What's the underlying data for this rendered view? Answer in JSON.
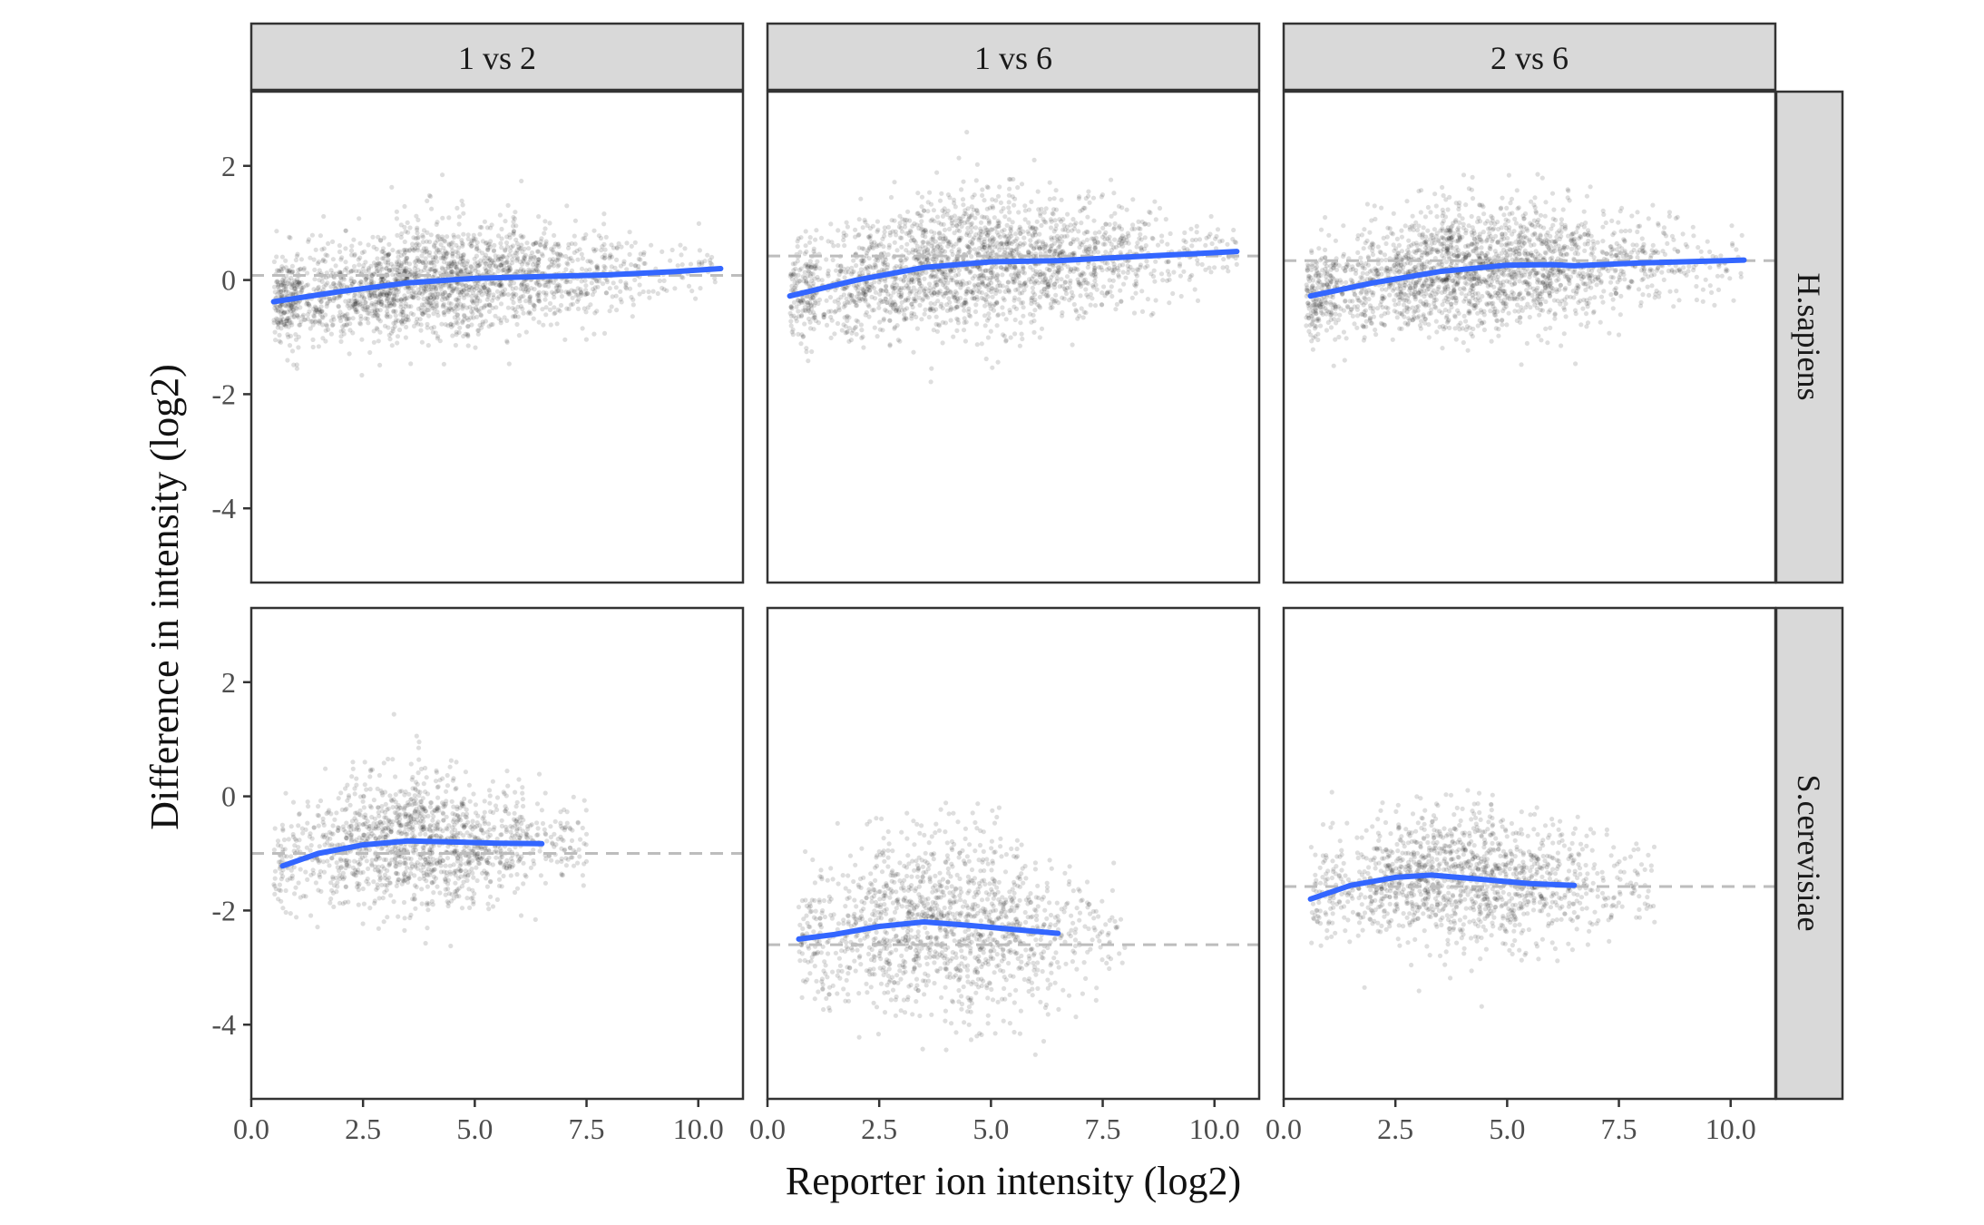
{
  "chart_data": {
    "type": "scatter",
    "xlabel": "Reporter ion intensity (log2)",
    "ylabel": "Difference in intensity (log2)",
    "xlim": [
      0,
      11
    ],
    "ylim": [
      -5.3,
      3.3
    ],
    "xticks": [
      0,
      2.5,
      5,
      7.5,
      10
    ],
    "xtick_labels": [
      "0.0",
      "2.5",
      "5.0",
      "7.5",
      "10.0"
    ],
    "yticks": [
      2,
      0,
      -2,
      -4
    ],
    "ytick_labels": [
      "2",
      "0",
      "-2",
      "-4"
    ],
    "grid": false,
    "legend": "none",
    "colors": {
      "points": "#000000",
      "smooth": "#3366ff",
      "reference": "#bdbdbd",
      "strip_bg": "#d9d9d9",
      "panel_border": "#333333"
    },
    "col_facets": [
      "1 vs 2",
      "1 vs 6",
      "2 vs 6"
    ],
    "row_facets": [
      "H.sapiens",
      "S.cerevisiae"
    ],
    "panels": [
      {
        "row": "H.sapiens",
        "col": "1 vs 2",
        "reference_y": 0.08,
        "x_range": [
          0.5,
          10.5
        ],
        "scatter_center": 4.2,
        "spread": 0.45,
        "smooth": {
          "x": [
            0.5,
            2.0,
            3.5,
            5.0,
            6.5,
            8.0,
            9.5,
            10.5
          ],
          "y": [
            -0.38,
            -0.2,
            -0.05,
            0.03,
            0.06,
            0.09,
            0.15,
            0.2
          ]
        }
      },
      {
        "row": "H.sapiens",
        "col": "1 vs 6",
        "reference_y": 0.42,
        "x_range": [
          0.5,
          10.5
        ],
        "scatter_center": 4.5,
        "spread": 0.55,
        "smooth": {
          "x": [
            0.5,
            2.0,
            3.5,
            5.0,
            6.5,
            8.0,
            9.5,
            10.5
          ],
          "y": [
            -0.28,
            0.0,
            0.22,
            0.32,
            0.34,
            0.4,
            0.46,
            0.5
          ]
        }
      },
      {
        "row": "H.sapiens",
        "col": "2 vs 6",
        "reference_y": 0.34,
        "x_range": [
          0.5,
          10.3
        ],
        "scatter_center": 4.3,
        "spread": 0.5,
        "smooth": {
          "x": [
            0.6,
            2.0,
            3.5,
            5.0,
            6.0,
            6.5,
            8.0,
            9.5,
            10.3
          ],
          "y": [
            -0.28,
            -0.05,
            0.15,
            0.26,
            0.27,
            0.25,
            0.3,
            0.33,
            0.35
          ]
        }
      },
      {
        "row": "S.cerevisiae",
        "col": "1 vs 2",
        "reference_y": -1.0,
        "x_range": [
          0.5,
          7.5
        ],
        "scatter_center": 3.8,
        "spread": 0.55,
        "smooth": {
          "x": [
            0.7,
            1.5,
            2.5,
            3.5,
            4.5,
            5.5,
            6.5
          ],
          "y": [
            -1.22,
            -1.0,
            -0.85,
            -0.78,
            -0.8,
            -0.82,
            -0.83
          ]
        }
      },
      {
        "row": "S.cerevisiae",
        "col": "1 vs 6",
        "reference_y": -2.6,
        "x_range": [
          0.7,
          8.0
        ],
        "scatter_center": 4.0,
        "spread": 0.75,
        "smooth": {
          "x": [
            0.7,
            1.5,
            2.5,
            3.5,
            4.5,
            5.5,
            6.5
          ],
          "y": [
            -2.5,
            -2.42,
            -2.28,
            -2.2,
            -2.26,
            -2.33,
            -2.4
          ]
        }
      },
      {
        "row": "S.cerevisiae",
        "col": "2 vs 6",
        "reference_y": -1.58,
        "x_range": [
          0.6,
          8.3
        ],
        "scatter_center": 4.0,
        "spread": 0.55,
        "smooth": {
          "x": [
            0.6,
            1.5,
            2.5,
            3.3,
            4.5,
            5.5,
            6.5
          ],
          "y": [
            -1.8,
            -1.56,
            -1.42,
            -1.38,
            -1.46,
            -1.53,
            -1.56
          ]
        }
      }
    ]
  }
}
